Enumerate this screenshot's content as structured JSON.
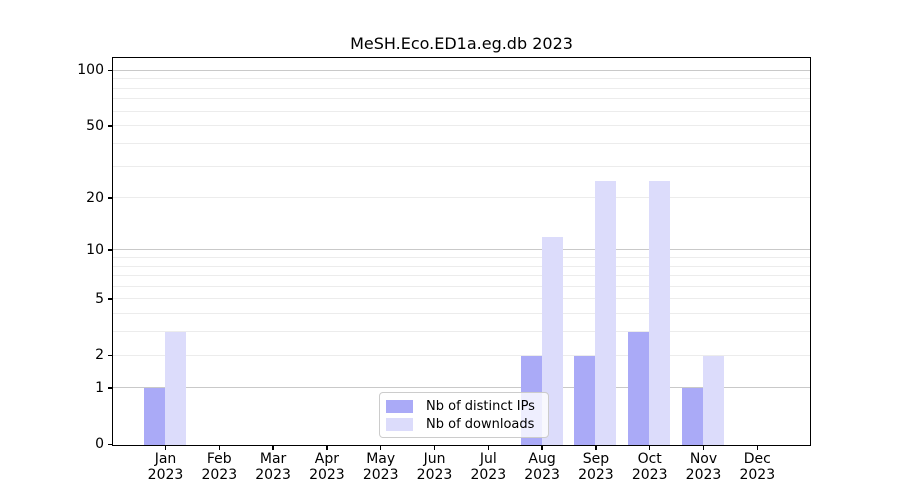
{
  "chart_data": {
    "type": "bar",
    "title": "MeSH.Eco.ED1a.eg.db 2023",
    "categories": [
      "Jan 2023",
      "Feb 2023",
      "Mar 2023",
      "Apr 2023",
      "May 2023",
      "Jun 2023",
      "Jul 2023",
      "Aug 2023",
      "Sep 2023",
      "Oct 2023",
      "Nov 2023",
      "Dec 2023"
    ],
    "series": [
      {
        "name": "Nb of distinct IPs",
        "color": "#aaaaf7",
        "values": [
          1,
          0,
          0,
          0,
          0,
          0,
          0,
          2,
          2,
          3,
          1,
          0
        ]
      },
      {
        "name": "Nb of downloads",
        "color": "#dcdcfb",
        "values": [
          3,
          0,
          0,
          0,
          0,
          0,
          0,
          12,
          25,
          25,
          2,
          0
        ]
      }
    ],
    "xlabel": "",
    "ylabel": "",
    "yscale": "log1p",
    "ylim": [
      0,
      116
    ],
    "yticks": [
      0,
      1,
      2,
      5,
      10,
      20,
      50,
      100
    ],
    "major_gridlines": [
      1,
      10,
      100
    ],
    "minor_gridlines": [
      2,
      3,
      4,
      5,
      6,
      7,
      8,
      9,
      20,
      30,
      40,
      50,
      60,
      70,
      80,
      90
    ],
    "grid": "on",
    "legend_position": "lower center",
    "colors": {
      "major_grid": "#c9c9c9",
      "minor_grid": "#ececec",
      "spine": "#000000",
      "text": "#000000",
      "legend_border": "#cccccc",
      "background": "#ffffff"
    }
  }
}
